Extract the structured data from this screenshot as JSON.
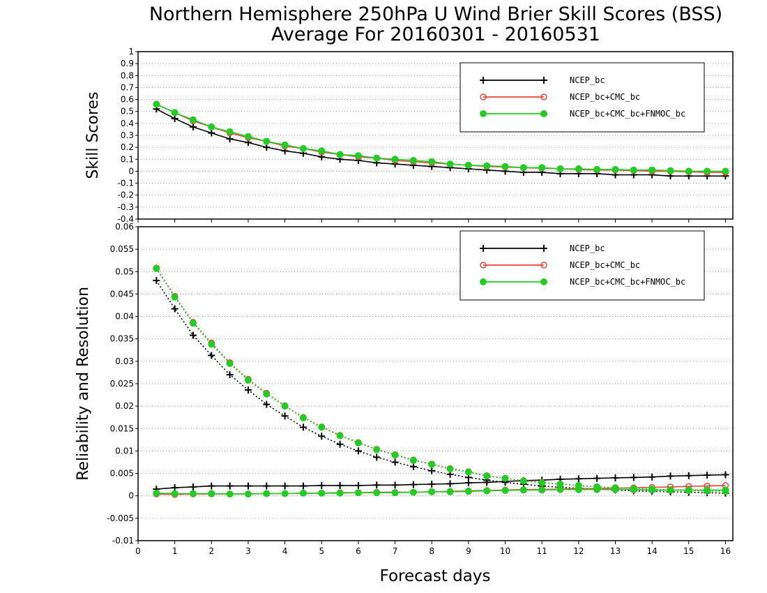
{
  "figure": {
    "title_line1": "Northern Hemisphere 250hPa U Wind Brier Skill Scores (BSS)",
    "title_line2": "Average For 20160301 - 20160531",
    "xlabel": "Forecast days"
  },
  "colors": {
    "NCEP_bc": "#000000",
    "NCEP_bc+CMC_bc": "#e8443a",
    "NCEP_bc+CMC_bc+FNMOC_bc": "#22cc22",
    "grid": "#9a9a9a"
  },
  "chart_data": [
    {
      "type": "line",
      "ylabel": "Skill Scores",
      "xlim": [
        0,
        16.2
      ],
      "ylim": [
        -0.4,
        1
      ],
      "xticks": [
        "0",
        "1",
        "2",
        "3",
        "4",
        "5",
        "6",
        "7",
        "8",
        "9",
        "10",
        "11",
        "12",
        "13",
        "14",
        "15",
        "16"
      ],
      "yticks": [
        "-0.4",
        "-0.3",
        "-0.2",
        "-0.1",
        "0",
        "0.1",
        "0.2",
        "0.3",
        "0.4",
        "0.5",
        "0.6",
        "0.7",
        "0.8",
        "0.9",
        "1"
      ],
      "grid": "horizontal dotted",
      "legend": {
        "position": "top-right",
        "entries": [
          "NCEP_bc",
          "NCEP_bc+CMC_bc",
          "NCEP_bc+CMC_bc+FNMOC_bc"
        ]
      },
      "x": [
        0.5,
        1,
        1.5,
        2,
        2.5,
        3,
        3.5,
        4,
        4.5,
        5,
        5.5,
        6,
        6.5,
        7,
        7.5,
        8,
        8.5,
        9,
        9.5,
        10,
        10.5,
        11,
        11.5,
        12,
        12.5,
        13,
        13.5,
        14,
        14.5,
        15,
        15.5,
        16
      ],
      "series": [
        {
          "name": "NCEP_bc",
          "marker": "plus",
          "style": "solid",
          "values": [
            0.52,
            0.44,
            0.37,
            0.32,
            0.27,
            0.24,
            0.2,
            0.17,
            0.15,
            0.12,
            0.1,
            0.09,
            0.07,
            0.06,
            0.05,
            0.04,
            0.03,
            0.02,
            0.01,
            0.0,
            -0.01,
            -0.01,
            -0.02,
            -0.02,
            -0.02,
            -0.03,
            -0.03,
            -0.03,
            -0.04,
            -0.04,
            -0.04,
            -0.04
          ]
        },
        {
          "name": "NCEP_bc+CMC_bc",
          "marker": "open-circle",
          "style": "solid",
          "values": [
            0.56,
            0.49,
            0.42,
            0.37,
            0.32,
            0.28,
            0.25,
            0.21,
            0.19,
            0.16,
            0.14,
            0.12,
            0.11,
            0.09,
            0.08,
            0.07,
            0.06,
            0.05,
            0.04,
            0.035,
            0.03,
            0.025,
            0.02,
            0.015,
            0.01,
            0.01,
            0.005,
            0.0,
            0.0,
            -0.005,
            -0.01,
            -0.01
          ]
        },
        {
          "name": "NCEP_bc+CMC_bc+FNMOC_bc",
          "marker": "filled-circle",
          "style": "solid",
          "values": [
            0.56,
            0.49,
            0.43,
            0.37,
            0.33,
            0.29,
            0.25,
            0.22,
            0.19,
            0.17,
            0.14,
            0.13,
            0.11,
            0.1,
            0.09,
            0.08,
            0.06,
            0.05,
            0.045,
            0.04,
            0.03,
            0.03,
            0.02,
            0.02,
            0.015,
            0.015,
            0.01,
            0.01,
            0.005,
            0.0,
            0.0,
            0.0
          ]
        }
      ]
    },
    {
      "type": "line",
      "ylabel": "Reliability and Resolution",
      "xlim": [
        0,
        16.2
      ],
      "ylim": [
        -0.01,
        0.06
      ],
      "xticks": [
        "0",
        "1",
        "2",
        "3",
        "4",
        "5",
        "6",
        "7",
        "8",
        "9",
        "10",
        "11",
        "12",
        "13",
        "14",
        "15",
        "16"
      ],
      "yticks": [
        "-0.01",
        "-0.005",
        "0",
        "0.005",
        "0.01",
        "0.015",
        "0.02",
        "0.025",
        "0.03",
        "0.035",
        "0.04",
        "0.045",
        "0.05",
        "0.055",
        "0.06"
      ],
      "grid": "horizontal dotted",
      "legend": {
        "position": "top-right",
        "entries": [
          "NCEP_bc",
          "NCEP_bc+CMC_bc",
          "NCEP_bc+CMC_bc+FNMOC_bc"
        ]
      },
      "x": [
        0.5,
        1,
        1.5,
        2,
        2.5,
        3,
        3.5,
        4,
        4.5,
        5,
        5.5,
        6,
        6.5,
        7,
        7.5,
        8,
        8.5,
        9,
        9.5,
        10,
        10.5,
        11,
        11.5,
        12,
        12.5,
        13,
        13.5,
        14,
        14.5,
        15,
        15.5,
        16
      ],
      "series": [
        {
          "name": "NCEP_bc",
          "marker": "plus",
          "style": "dotted",
          "values": [
            0.048,
            0.0417,
            0.0358,
            0.0313,
            0.027,
            0.0236,
            0.0204,
            0.0178,
            0.0153,
            0.0133,
            0.0115,
            0.01,
            0.0086,
            0.0075,
            0.0065,
            0.0056,
            0.0048,
            0.0041,
            0.0035,
            0.003,
            0.0026,
            0.0022,
            0.0019,
            0.0017,
            0.0015,
            0.0013,
            0.0011,
            0.001,
            0.0009,
            0.0008,
            0.0007,
            0.0006
          ]
        },
        {
          "name": "NCEP_bc",
          "marker": "plus",
          "style": "solid",
          "values": [
            0.0015,
            0.0018,
            0.002,
            0.0022,
            0.0022,
            0.0022,
            0.0022,
            0.0022,
            0.0022,
            0.0023,
            0.0023,
            0.0023,
            0.0024,
            0.0024,
            0.0025,
            0.0026,
            0.0027,
            0.0029,
            0.003,
            0.0032,
            0.0034,
            0.0035,
            0.0037,
            0.0038,
            0.0039,
            0.004,
            0.0041,
            0.0042,
            0.0044,
            0.0045,
            0.0046,
            0.0047
          ]
        },
        {
          "name": "NCEP_bc+CMC_bc",
          "marker": "open-circle",
          "style": "dotted",
          "values": [
            0.0508,
            0.0445,
            0.0387,
            0.0341,
            0.0297,
            0.026,
            0.0229,
            0.0201,
            0.0175,
            0.0154,
            0.0135,
            0.0119,
            0.0104,
            0.0092,
            0.008,
            0.0071,
            0.0061,
            0.0054,
            0.0045,
            0.0039,
            0.0034,
            0.003,
            0.0026,
            0.0023,
            0.002,
            0.0018,
            0.0016,
            0.0015,
            0.0013,
            0.0012,
            0.0011,
            0.001
          ]
        },
        {
          "name": "NCEP_bc+CMC_bc",
          "marker": "open-circle",
          "style": "solid",
          "values": [
            0.0004,
            0.0003,
            0.0004,
            0.0004,
            0.0004,
            0.0004,
            0.0005,
            0.0005,
            0.0006,
            0.0006,
            0.0007,
            0.0007,
            0.0008,
            0.0008,
            0.0008,
            0.0009,
            0.001,
            0.0011,
            0.0012,
            0.0013,
            0.0014,
            0.0014,
            0.0015,
            0.0016,
            0.0016,
            0.0017,
            0.0018,
            0.0019,
            0.002,
            0.0021,
            0.0022,
            0.0023
          ]
        },
        {
          "name": "NCEP_bc+CMC_bc+FNMOC_bc",
          "marker": "filled-circle",
          "style": "dotted",
          "values": [
            0.0507,
            0.0443,
            0.0385,
            0.0338,
            0.0295,
            0.0258,
            0.0227,
            0.02,
            0.0174,
            0.0153,
            0.0134,
            0.0118,
            0.0103,
            0.0091,
            0.0079,
            0.007,
            0.006,
            0.0053,
            0.0044,
            0.0039,
            0.0033,
            0.0029,
            0.0026,
            0.0023,
            0.002,
            0.0018,
            0.0016,
            0.0015,
            0.0013,
            0.0012,
            0.0011,
            0.001
          ]
        },
        {
          "name": "NCEP_bc+CMC_bc+FNMOC_bc",
          "marker": "filled-circle",
          "style": "solid",
          "values": [
            0.0006,
            0.0005,
            0.0005,
            0.0005,
            0.0004,
            0.0004,
            0.0005,
            0.0005,
            0.0006,
            0.0006,
            0.0006,
            0.0007,
            0.0007,
            0.0007,
            0.0008,
            0.0009,
            0.0009,
            0.001,
            0.0011,
            0.0012,
            0.0013,
            0.0013,
            0.0014,
            0.0014,
            0.0014,
            0.0014,
            0.0014,
            0.0013,
            0.0013,
            0.0013,
            0.0013,
            0.0013
          ]
        }
      ]
    }
  ]
}
